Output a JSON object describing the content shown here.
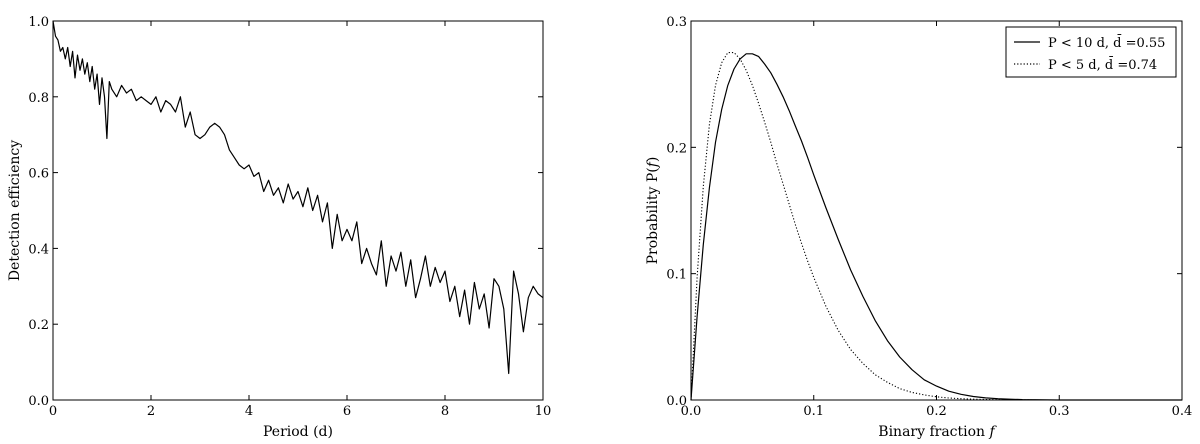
{
  "chart_data": [
    {
      "type": "line",
      "title": "",
      "xlabel": "Period (d)",
      "ylabel": "Detection efficiency",
      "xlim": [
        0,
        10
      ],
      "ylim": [
        0,
        1
      ],
      "xticks": [
        "0",
        "2",
        "4",
        "6",
        "8",
        "10"
      ],
      "xtick_values": [
        0,
        2,
        4,
        6,
        8,
        10
      ],
      "yticks": [
        "0.0",
        "0.2",
        "0.4",
        "0.6",
        "0.8",
        "1.0"
      ],
      "ytick_values": [
        0,
        0.2,
        0.4,
        0.6,
        0.8,
        1.0
      ],
      "grid": false,
      "series": [
        {
          "color": "#000000",
          "style": "solid",
          "x": [
            0.0,
            0.05,
            0.1,
            0.15,
            0.2,
            0.25,
            0.3,
            0.35,
            0.4,
            0.45,
            0.5,
            0.55,
            0.6,
            0.65,
            0.7,
            0.75,
            0.8,
            0.85,
            0.9,
            0.95,
            1.0,
            1.05,
            1.1,
            1.15,
            1.2,
            1.3,
            1.4,
            1.5,
            1.6,
            1.7,
            1.8,
            1.9,
            2.0,
            2.1,
            2.2,
            2.3,
            2.4,
            2.5,
            2.6,
            2.7,
            2.8,
            2.9,
            3.0,
            3.1,
            3.2,
            3.3,
            3.4,
            3.5,
            3.6,
            3.7,
            3.8,
            3.9,
            4.0,
            4.1,
            4.2,
            4.3,
            4.4,
            4.5,
            4.6,
            4.7,
            4.8,
            4.9,
            5.0,
            5.1,
            5.2,
            5.3,
            5.4,
            5.5,
            5.6,
            5.7,
            5.8,
            5.9,
            6.0,
            6.1,
            6.2,
            6.3,
            6.4,
            6.5,
            6.6,
            6.7,
            6.8,
            6.9,
            7.0,
            7.1,
            7.2,
            7.3,
            7.4,
            7.5,
            7.6,
            7.7,
            7.8,
            7.9,
            8.0,
            8.1,
            8.2,
            8.3,
            8.4,
            8.5,
            8.6,
            8.7,
            8.8,
            8.9,
            9.0,
            9.1,
            9.2,
            9.3,
            9.4,
            9.5,
            9.6,
            9.7,
            9.8,
            9.9,
            10.0
          ],
          "y": [
            1.0,
            0.96,
            0.95,
            0.92,
            0.93,
            0.9,
            0.93,
            0.88,
            0.92,
            0.85,
            0.91,
            0.87,
            0.9,
            0.86,
            0.89,
            0.84,
            0.88,
            0.82,
            0.86,
            0.78,
            0.85,
            0.8,
            0.69,
            0.84,
            0.82,
            0.8,
            0.83,
            0.81,
            0.82,
            0.79,
            0.8,
            0.79,
            0.78,
            0.8,
            0.76,
            0.79,
            0.78,
            0.76,
            0.8,
            0.72,
            0.76,
            0.7,
            0.69,
            0.7,
            0.72,
            0.73,
            0.72,
            0.7,
            0.66,
            0.64,
            0.62,
            0.61,
            0.62,
            0.59,
            0.6,
            0.55,
            0.58,
            0.54,
            0.56,
            0.52,
            0.57,
            0.53,
            0.55,
            0.51,
            0.56,
            0.5,
            0.54,
            0.47,
            0.52,
            0.4,
            0.49,
            0.42,
            0.45,
            0.42,
            0.47,
            0.36,
            0.4,
            0.36,
            0.33,
            0.42,
            0.3,
            0.38,
            0.34,
            0.39,
            0.3,
            0.37,
            0.27,
            0.32,
            0.38,
            0.3,
            0.35,
            0.31,
            0.34,
            0.26,
            0.3,
            0.22,
            0.29,
            0.2,
            0.31,
            0.24,
            0.28,
            0.19,
            0.32,
            0.3,
            0.24,
            0.07,
            0.34,
            0.28,
            0.18,
            0.27,
            0.3,
            0.28,
            0.27
          ]
        }
      ]
    },
    {
      "type": "line",
      "title": "",
      "xlabel": "Binary fraction f",
      "ylabel": "Probability P(f)",
      "xlim": [
        0,
        0.4
      ],
      "ylim": [
        0,
        0.3
      ],
      "xticks": [
        "0.0",
        "0.1",
        "0.2",
        "0.3",
        "0.4"
      ],
      "xtick_values": [
        0,
        0.1,
        0.2,
        0.3,
        0.4
      ],
      "yticks": [
        "0.0",
        "0.1",
        "0.2",
        "0.3"
      ],
      "ytick_values": [
        0,
        0.1,
        0.2,
        0.3
      ],
      "grid": false,
      "legend_position": "top-right",
      "series": [
        {
          "name": "P < 10 d, d̄ =0.55",
          "color": "#000000",
          "style": "solid",
          "x": [
            0.0,
            0.005,
            0.01,
            0.015,
            0.02,
            0.025,
            0.03,
            0.035,
            0.04,
            0.045,
            0.05,
            0.055,
            0.06,
            0.065,
            0.07,
            0.075,
            0.08,
            0.085,
            0.09,
            0.095,
            0.1,
            0.11,
            0.12,
            0.13,
            0.14,
            0.15,
            0.16,
            0.17,
            0.18,
            0.19,
            0.2,
            0.21,
            0.22,
            0.23,
            0.24,
            0.25,
            0.26,
            0.27,
            0.28,
            0.29,
            0.3,
            0.32,
            0.34,
            0.36,
            0.38,
            0.4
          ],
          "y": [
            0.0,
            0.066,
            0.123,
            0.168,
            0.204,
            0.23,
            0.249,
            0.262,
            0.27,
            0.274,
            0.274,
            0.272,
            0.266,
            0.259,
            0.25,
            0.24,
            0.229,
            0.217,
            0.205,
            0.192,
            0.178,
            0.152,
            0.127,
            0.103,
            0.082,
            0.063,
            0.047,
            0.034,
            0.024,
            0.016,
            0.011,
            0.007,
            0.0045,
            0.0028,
            0.0017,
            0.001,
            0.0006,
            0.0003,
            0.0002,
            0.0001,
            0.0,
            0.0,
            0.0,
            0.0,
            0.0,
            0.0
          ]
        },
        {
          "name": "P < 5 d, d̄ =0.74",
          "color": "#000000",
          "style": "dotted",
          "x": [
            0.0,
            0.005,
            0.01,
            0.015,
            0.02,
            0.025,
            0.03,
            0.035,
            0.04,
            0.045,
            0.05,
            0.055,
            0.06,
            0.065,
            0.07,
            0.075,
            0.08,
            0.085,
            0.09,
            0.095,
            0.1,
            0.11,
            0.12,
            0.13,
            0.14,
            0.15,
            0.16,
            0.17,
            0.18,
            0.19,
            0.2,
            0.21,
            0.22,
            0.23,
            0.24,
            0.25,
            0.26,
            0.28,
            0.3,
            0.35,
            0.4
          ],
          "y": [
            0.0,
            0.097,
            0.169,
            0.218,
            0.249,
            0.267,
            0.275,
            0.275,
            0.27,
            0.261,
            0.249,
            0.235,
            0.22,
            0.204,
            0.187,
            0.171,
            0.155,
            0.139,
            0.124,
            0.11,
            0.097,
            0.074,
            0.055,
            0.04,
            0.029,
            0.02,
            0.014,
            0.009,
            0.006,
            0.004,
            0.0025,
            0.0016,
            0.001,
            0.0006,
            0.0004,
            0.0002,
            0.0001,
            0.0,
            0.0,
            0.0,
            0.0
          ]
        }
      ]
    }
  ]
}
